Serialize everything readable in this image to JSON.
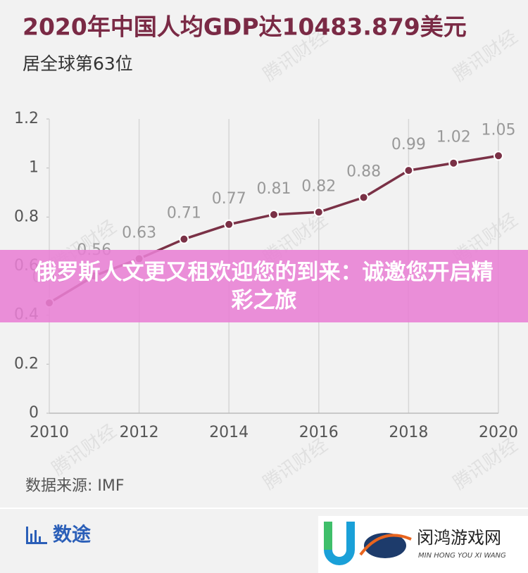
{
  "chart_data": {
    "type": "line",
    "title": "2020年中国人均GDP达10483.879美元",
    "subtitle": "居全球第63位",
    "x": [
      2010,
      2011,
      2012,
      2013,
      2014,
      2015,
      2016,
      2017,
      2018,
      2019,
      2020
    ],
    "values": [
      0.45,
      0.56,
      0.63,
      0.71,
      0.77,
      0.81,
      0.82,
      0.88,
      0.99,
      1.02,
      1.05
    ],
    "color": "#7a3146",
    "xlim": [
      2010,
      2020
    ],
    "xticks": [
      2010,
      2012,
      2014,
      2016,
      2018,
      2020
    ],
    "ylim": [
      0,
      1.2
    ],
    "yticks": [
      0,
      0.2,
      0.4,
      0.6,
      0.8,
      1,
      1.2
    ],
    "grid": true,
    "source": "数据来源: IMF"
  },
  "overlay": {
    "text": "俄罗斯人文更又租欢迎您的到来：诚邀您开启精彩之旅"
  },
  "branding": {
    "logo": "数途",
    "watermark": "腾讯财经",
    "site_name": "闵鸿游戏网",
    "site_pinyin": "MIN HONG YOU XI WANG"
  }
}
